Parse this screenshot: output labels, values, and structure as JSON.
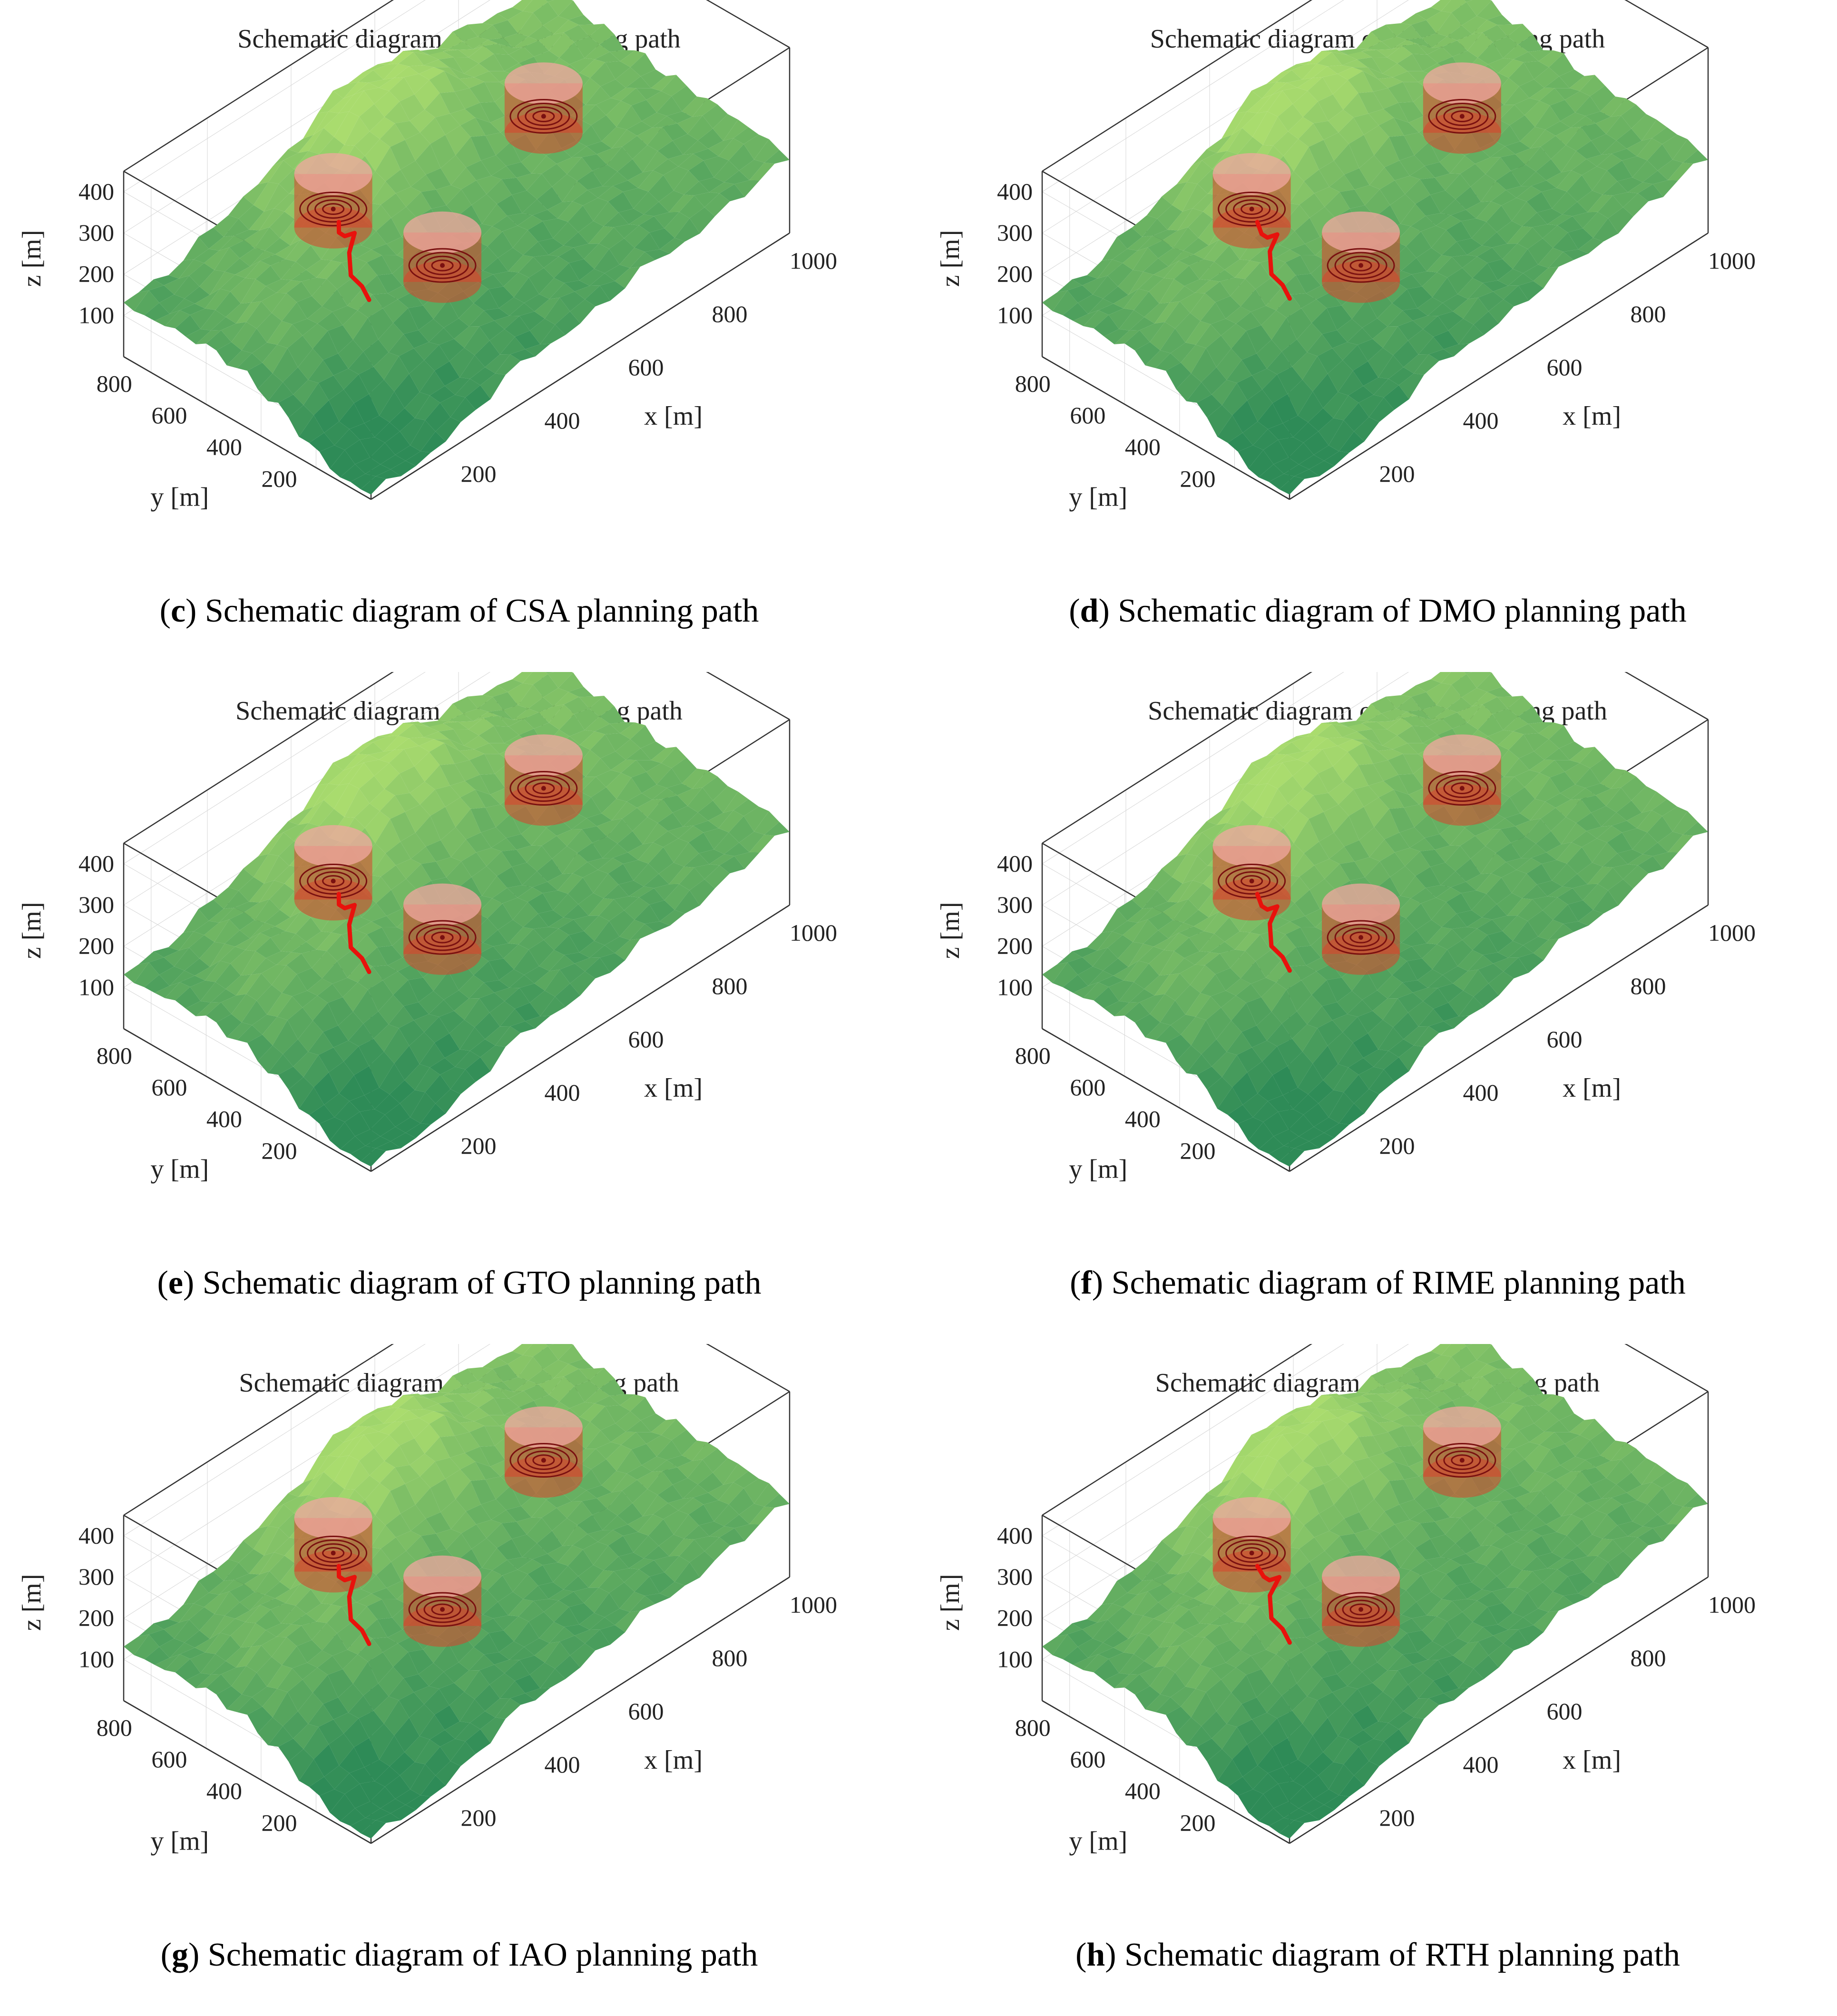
{
  "chart_data": [
    {
      "type": "surface3d",
      "letter": "c",
      "caption_rest": "Schematic diagram of CSA planning path",
      "title": "Schematic diagram of CSA planning path",
      "xlabel": "x [m]",
      "ylabel": "y [m]",
      "zlabel": "z [m]",
      "xticks": [
        "200",
        "400",
        "600",
        "800",
        "1000"
      ],
      "yticks": [
        "200",
        "400",
        "600",
        "800"
      ],
      "zticks": [
        "100",
        "200",
        "300",
        "400"
      ],
      "xlim": [
        0,
        1000
      ],
      "ylim": [
        0,
        900
      ],
      "zlim": [
        0,
        450
      ],
      "path": [
        [
          120,
          300,
          480
        ],
        [
          140,
          330,
          430
        ],
        [
          180,
          370,
          380
        ],
        [
          230,
          410,
          340
        ],
        [
          250,
          460,
          260
        ],
        [
          280,
          500,
          170
        ],
        [
          320,
          520,
          110
        ],
        [
          350,
          540,
          50
        ]
      ]
    },
    {
      "type": "surface3d",
      "letter": "d",
      "caption_rest": "Schematic diagram of DMO planning path",
      "title": "Schematic diagram of DMO planning path",
      "xlabel": "x [m]",
      "ylabel": "y [m]",
      "zlabel": "z [m]",
      "xticks": [
        "200",
        "400",
        "600",
        "800",
        "1000"
      ],
      "yticks": [
        "200",
        "400",
        "600",
        "800"
      ],
      "zticks": [
        "100",
        "200",
        "300",
        "400"
      ],
      "xlim": [
        0,
        1000
      ],
      "ylim": [
        0,
        900
      ],
      "zlim": [
        0,
        450
      ],
      "path": [
        [
          120,
          300,
          480
        ],
        [
          150,
          330,
          420
        ],
        [
          190,
          370,
          370
        ],
        [
          240,
          410,
          330
        ],
        [
          255,
          460,
          260
        ],
        [
          285,
          500,
          170
        ],
        [
          325,
          520,
          110
        ],
        [
          355,
          540,
          50
        ]
      ]
    },
    {
      "type": "surface3d",
      "letter": "e",
      "caption_rest": "Schematic diagram of GTO planning path",
      "title": "Schematic diagram of GTO planning path",
      "xlabel": "x [m]",
      "ylabel": "y [m]",
      "zlabel": "z [m]",
      "xticks": [
        "200",
        "400",
        "600",
        "800",
        "1000"
      ],
      "yticks": [
        "200",
        "400",
        "600",
        "800"
      ],
      "zticks": [
        "100",
        "200",
        "300",
        "400"
      ],
      "xlim": [
        0,
        1000
      ],
      "ylim": [
        0,
        900
      ],
      "zlim": [
        0,
        450
      ],
      "path": [
        [
          120,
          300,
          480
        ],
        [
          140,
          330,
          430
        ],
        [
          180,
          370,
          380
        ],
        [
          230,
          410,
          340
        ],
        [
          250,
          460,
          260
        ],
        [
          280,
          500,
          170
        ],
        [
          320,
          520,
          110
        ],
        [
          350,
          540,
          50
        ]
      ]
    },
    {
      "type": "surface3d",
      "letter": "f",
      "caption_rest": "Schematic diagram of RIME planning path",
      "title": "Schematic diagram of RIME planning path",
      "xlabel": "x [m]",
      "ylabel": "y [m]",
      "zlabel": "z [m]",
      "xticks": [
        "200",
        "400",
        "600",
        "800",
        "1000"
      ],
      "yticks": [
        "200",
        "400",
        "600",
        "800"
      ],
      "zticks": [
        "100",
        "200",
        "300",
        "400"
      ],
      "xlim": [
        0,
        1000
      ],
      "ylim": [
        0,
        900
      ],
      "zlim": [
        0,
        450
      ],
      "path": [
        [
          120,
          300,
          480
        ],
        [
          150,
          330,
          420
        ],
        [
          190,
          370,
          370
        ],
        [
          240,
          410,
          330
        ],
        [
          255,
          460,
          260
        ],
        [
          285,
          500,
          170
        ],
        [
          325,
          520,
          110
        ],
        [
          355,
          540,
          50
        ]
      ]
    },
    {
      "type": "surface3d",
      "letter": "g",
      "caption_rest": "Schematic diagram of IAO planning path",
      "title": "Schematic diagram of IAO planning path",
      "xlabel": "x [m]",
      "ylabel": "y [m]",
      "zlabel": "z [m]",
      "xticks": [
        "200",
        "400",
        "600",
        "800",
        "1000"
      ],
      "yticks": [
        "200",
        "400",
        "600",
        "800"
      ],
      "zticks": [
        "100",
        "200",
        "300",
        "400"
      ],
      "xlim": [
        0,
        1000
      ],
      "ylim": [
        0,
        900
      ],
      "zlim": [
        0,
        450
      ],
      "path": [
        [
          120,
          300,
          480
        ],
        [
          140,
          330,
          430
        ],
        [
          180,
          370,
          380
        ],
        [
          230,
          410,
          340
        ],
        [
          250,
          460,
          260
        ],
        [
          280,
          500,
          170
        ],
        [
          320,
          520,
          110
        ],
        [
          350,
          540,
          50
        ]
      ]
    },
    {
      "type": "surface3d",
      "letter": "h",
      "caption_rest": "Schematic diagram of RTH planning path",
      "title": "Schematic diagram of RTH planning path",
      "xlabel": "x [m]",
      "ylabel": "y [m]",
      "zlabel": "z [m]",
      "xticks": [
        "200",
        "400",
        "600",
        "800",
        "1000"
      ],
      "yticks": [
        "200",
        "400",
        "600",
        "800"
      ],
      "zticks": [
        "100",
        "200",
        "300",
        "400"
      ],
      "xlim": [
        0,
        1000
      ],
      "ylim": [
        0,
        900
      ],
      "zlim": [
        0,
        450
      ],
      "path": [
        [
          120,
          300,
          480
        ],
        [
          155,
          330,
          420
        ],
        [
          195,
          370,
          370
        ],
        [
          245,
          410,
          330
        ],
        [
          255,
          460,
          260
        ],
        [
          285,
          500,
          170
        ],
        [
          325,
          520,
          110
        ],
        [
          355,
          540,
          50
        ]
      ]
    }
  ],
  "colors": {
    "terrain_high": "#8fd16a",
    "terrain_low": "#2e8b57",
    "path": "#e8120c",
    "cylinder": "#d9432c",
    "axis": "#333333"
  }
}
